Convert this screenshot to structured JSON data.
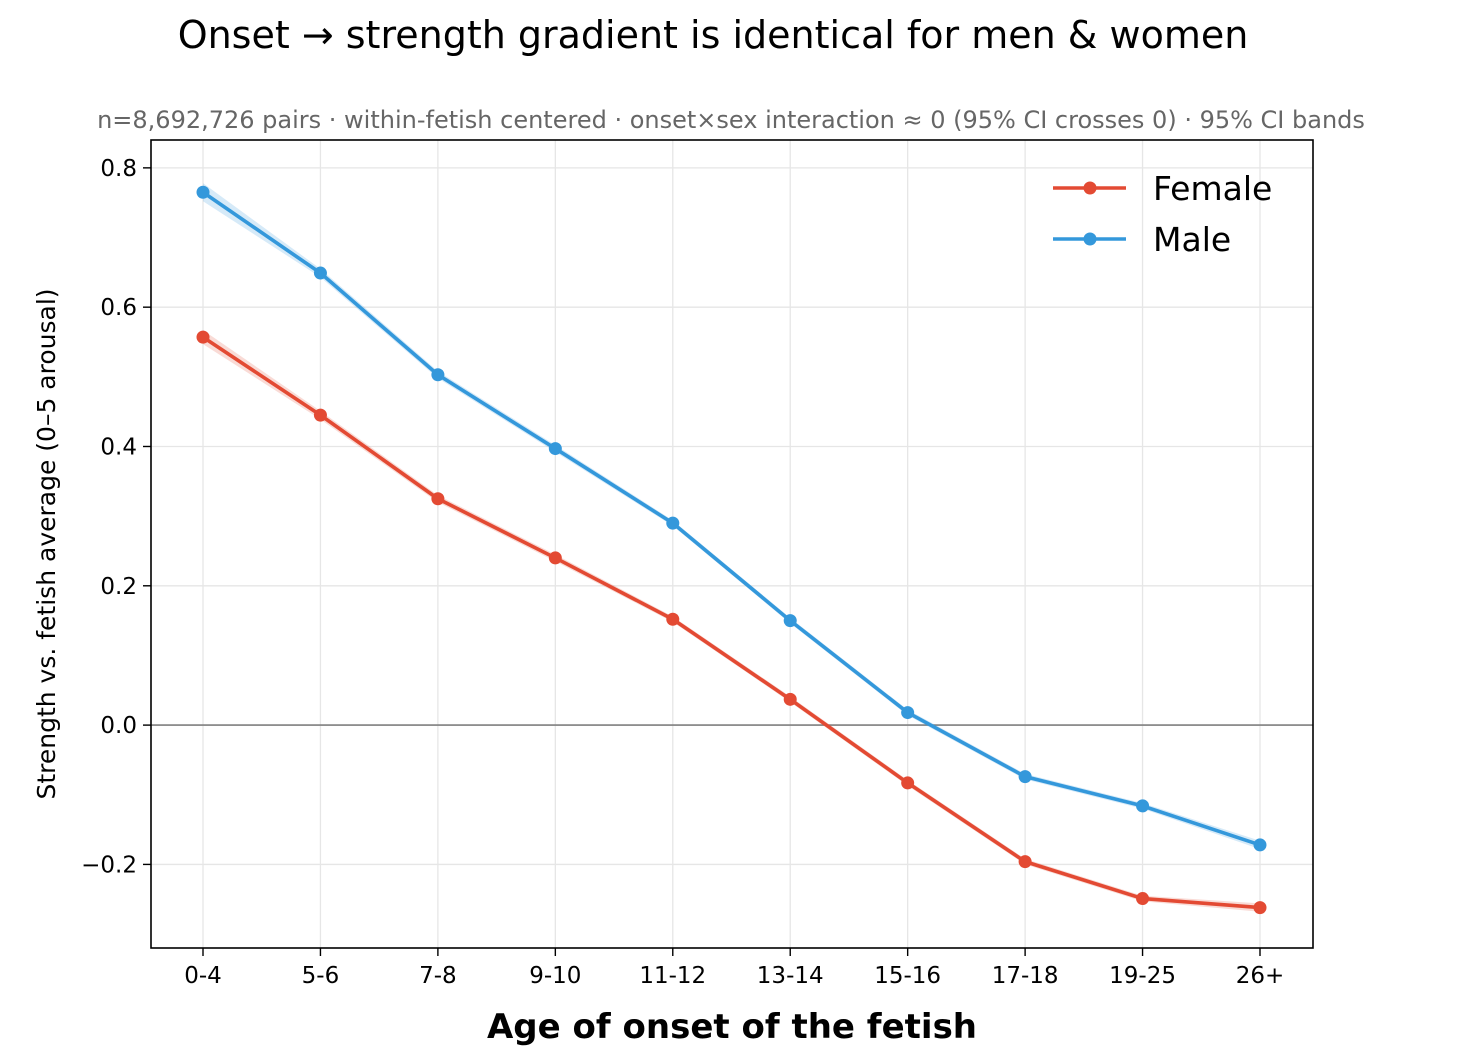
{
  "chart_data": {
    "type": "line",
    "title": "Onset → strength gradient is identical for men & women",
    "subtitle": "n=8,692,726 pairs · within-fetish centered · onset×sex interaction ≈ 0 (95% CI crosses 0) · 95% CI bands",
    "xlabel": "Age of onset of the fetish",
    "ylabel": "Strength vs. fetish average (0–5 arousal)",
    "categories": [
      "0-4",
      "5-6",
      "7-8",
      "9-10",
      "11-12",
      "13-14",
      "15-16",
      "17-18",
      "19-25",
      "26+"
    ],
    "ylim": [
      -0.32,
      0.84
    ],
    "yticks": [
      -0.2,
      0.0,
      0.2,
      0.4,
      0.6,
      0.8
    ],
    "ytick_labels": [
      "−0.2",
      "0.0",
      "0.2",
      "0.4",
      "0.6",
      "0.8"
    ],
    "reference_line": 0.0,
    "grid": true,
    "legend_position": "top-right",
    "series": [
      {
        "name": "Female",
        "color": "#e34a33",
        "values": [
          0.557,
          0.445,
          0.325,
          0.24,
          0.152,
          0.037,
          -0.083,
          -0.196,
          -0.249,
          -0.262
        ],
        "ci_low": [
          0.547,
          0.439,
          0.32,
          0.235,
          0.148,
          0.033,
          -0.087,
          -0.2,
          -0.253,
          -0.268
        ],
        "ci_high": [
          0.567,
          0.451,
          0.33,
          0.245,
          0.156,
          0.041,
          -0.079,
          -0.192,
          -0.245,
          -0.256
        ]
      },
      {
        "name": "Male",
        "color": "#3498db",
        "values": [
          0.765,
          0.649,
          0.503,
          0.397,
          0.29,
          0.15,
          0.018,
          -0.074,
          -0.116,
          -0.172
        ],
        "ci_low": [
          0.752,
          0.643,
          0.498,
          0.392,
          0.286,
          0.146,
          0.014,
          -0.078,
          -0.12,
          -0.178
        ],
        "ci_high": [
          0.778,
          0.655,
          0.508,
          0.402,
          0.294,
          0.154,
          0.022,
          -0.07,
          -0.112,
          -0.166
        ]
      }
    ]
  }
}
